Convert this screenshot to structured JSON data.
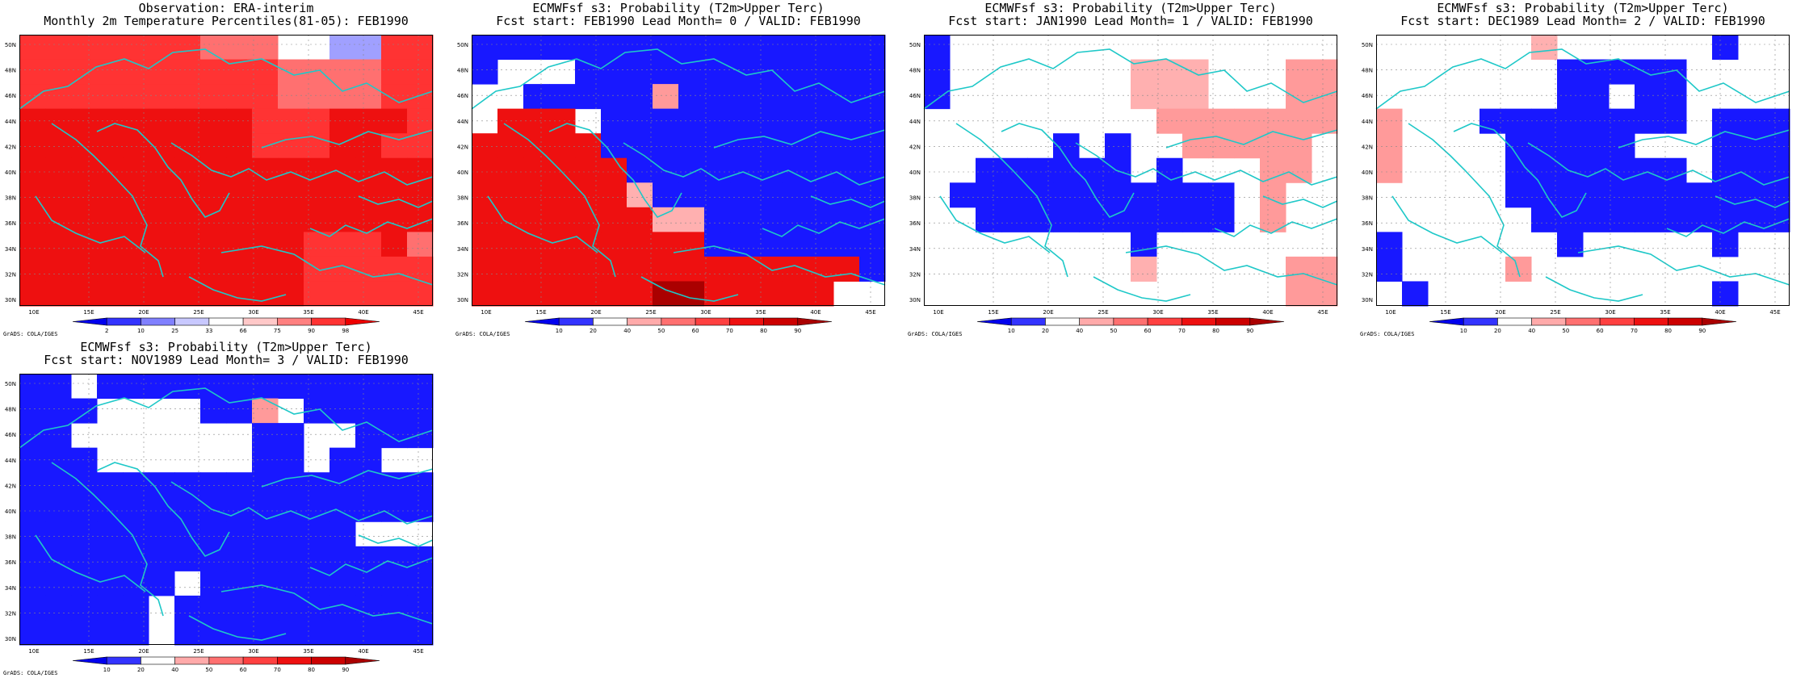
{
  "credit": "GrADS: COLA/IGES",
  "lat_labels": [
    "30N",
    "32N",
    "34N",
    "36N",
    "38N",
    "40N",
    "42N",
    "44N",
    "46N",
    "48N",
    "50N"
  ],
  "lon_labels": [
    "10E",
    "15E",
    "20E",
    "25E",
    "30E",
    "35E",
    "40E",
    "45E"
  ],
  "colorbars": {
    "obs": {
      "labels": [
        "2",
        "10",
        "25",
        "33",
        "66",
        "75",
        "90",
        "98"
      ],
      "colors": [
        "#0000ee",
        "#3333ff",
        "#8080ff",
        "#c8c8ff",
        "#ffffff",
        "#ffc8c8",
        "#ff8080",
        "#ff3333",
        "#ee0000"
      ]
    },
    "prob": {
      "labels": [
        "10",
        "20",
        "40",
        "50",
        "60",
        "70",
        "80",
        "90"
      ],
      "colors": [
        "#0000ee",
        "#3333ff",
        "#ffffff",
        "#ffaaaa",
        "#ff7070",
        "#ff4040",
        "#ee1010",
        "#cc0000",
        "#aa0000"
      ]
    }
  },
  "panels": [
    {
      "id": "obs",
      "title1": "Observation: ERA-interim",
      "title2": "Monthly 2m Temperature Percentiles(81-05): FEB1990",
      "colorbar": "obs",
      "grid": [
        "SSSSSSSTTT..ggSS",
        "SSSSSSSSSSTTTTSS",
        "SSSSSSSSSSTTTTSS",
        "RRRRRRRRRSSSRRRS",
        "RRRRRRRRRSSSRRSS",
        "RRRRRRRRRRRRRRRR",
        "RRRRRRRRRRRRRRRR",
        "RRRRRRRRRRRRRRRR",
        "RRRRRRRRRRRSSSRT",
        "RRRRRRRRRRRSSSSS",
        "RRRRRRRRRRRSSSSS"
      ]
    },
    {
      "id": "lead0",
      "title1": "ECMWFsf s3: Probability (T2m>Upper Terc)",
      "title2": "Fcst start: FEB1990  Lead Month= 0 / VALID: FEB1990",
      "colorbar": "prob",
      "grid": [
        "BBBBBBBBBBBBBBBB",
        "B...BBBBBBBBBBBB",
        "..BBBBBlBBBBBBBB",
        ".RRR.BBBBBBBBBBB",
        "RRRRRBBBBBBBBBBB",
        "RRRRRRBBBBBBBBBB",
        "RRRRRRpBBBBBBBBB",
        "RRRRRRRppBBBBBBB",
        "RRRRRRRRRBBBBBBB",
        "RRRRRRRRRRRRRRRB",
        "RRRRRRRDDRRRRR.."
      ]
    },
    {
      "id": "lead1",
      "title1": "ECMWFsf s3: Probability (T2m>Upper Terc)",
      "title2": "Fcst start: JAN1990  Lead Month= 1 / VALID: FEB1990",
      "colorbar": "prob",
      "grid": [
        "B...............",
        "B.......ppp...ll",
        "B.......ppp...ll",
        ".........lllllll",
        ".....B.B..lllll.",
        "..BBBBBB.B...ll.",
        ".BBBBBBBBBBB.l..",
        "..BBBBBBBBBB.l..",
        "........B.......",
        "........p.....ll",
        "..............ll"
      ]
    },
    {
      "id": "lead2",
      "title1": "ECMWFsf s3: Probability (T2m>Upper Terc)",
      "title2": "Fcst start: DEC1989  Lead Month= 2 / VALID: FEB1990",
      "colorbar": "prob",
      "grid": [
        "......p......B..",
        ".......BBBBB....",
        ".......BB.BB....",
        "l...BBBBBBBB.BBB",
        "l....BBBBB...BBB",
        "l....BBBBBBB.BBB",
        ".....BBBBBBBBBBB",
        "......BBBBBBBBBB",
        "B......B.....B..",
        "B....l..........",
        ".B...........B.."
      ]
    },
    {
      "id": "lead3",
      "title1": "ECMWFsf s3: Probability (T2m>Upper Terc)",
      "title2": "Fcst start: NOV1989  Lead Month= 3 / VALID: FEB1990",
      "colorbar": "prob",
      "grid": [
        "BB.BBBBBBBBBBBBB",
        "BBB....BBl.BBBBB",
        "BB.......BB..BBB",
        "BBB......BB.BB..",
        "BBBBBBBBBBBBBBBB",
        "BBBBBBBBBBBBBBBB",
        "BBBBBBBBBBBBB...",
        "BBBBBBBBBBBBBBBB",
        "BBBBBB.BBBBBBBBB",
        "BBBBB.BBBBBBBBBB",
        "BBBBB.BBBBBBBBBB"
      ]
    }
  ]
}
